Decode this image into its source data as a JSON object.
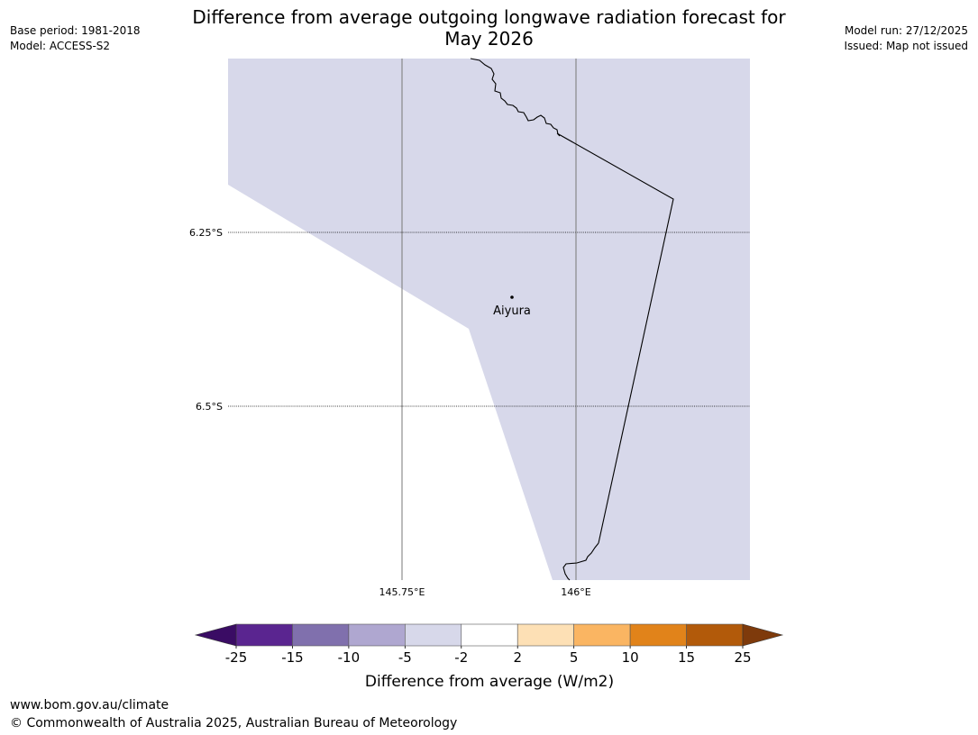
{
  "title": {
    "line1": "Difference from average outgoing longwave radiation forecast for",
    "line2": "May 2026"
  },
  "info_left": {
    "base_period": "Base period: 1981-2018",
    "model": "Model: ACCESS-S2"
  },
  "info_right": {
    "model_run": "Model run: 27/12/2025",
    "issued": "Issued: Map not issued"
  },
  "map": {
    "latitude_labels": [
      "6.25°S",
      "6.5°S"
    ],
    "longitude_labels": [
      "145.75°E",
      "146°E"
    ],
    "place": "Aiyura",
    "fill_color": "#d7d8ea"
  },
  "colorbar": {
    "label": "Difference from average (W/m2)",
    "ticks": [
      "-25",
      "-15",
      "-10",
      "-5",
      "-2",
      "2",
      "5",
      "10",
      "15",
      "25"
    ],
    "colors": [
      "#5a2590",
      "#8070ad",
      "#afa7d0",
      "#d7d8ea",
      "#ffffff",
      "#fde0b5",
      "#fab562",
      "#e1831a",
      "#b25a0a"
    ],
    "extend_min_color": "#3a0c64",
    "extend_max_color": "#7e3a0b"
  },
  "footer": {
    "url": "www.bom.gov.au/climate",
    "copyright": "© Commonwealth of Australia 2025, Australian Bureau of Meteorology"
  }
}
